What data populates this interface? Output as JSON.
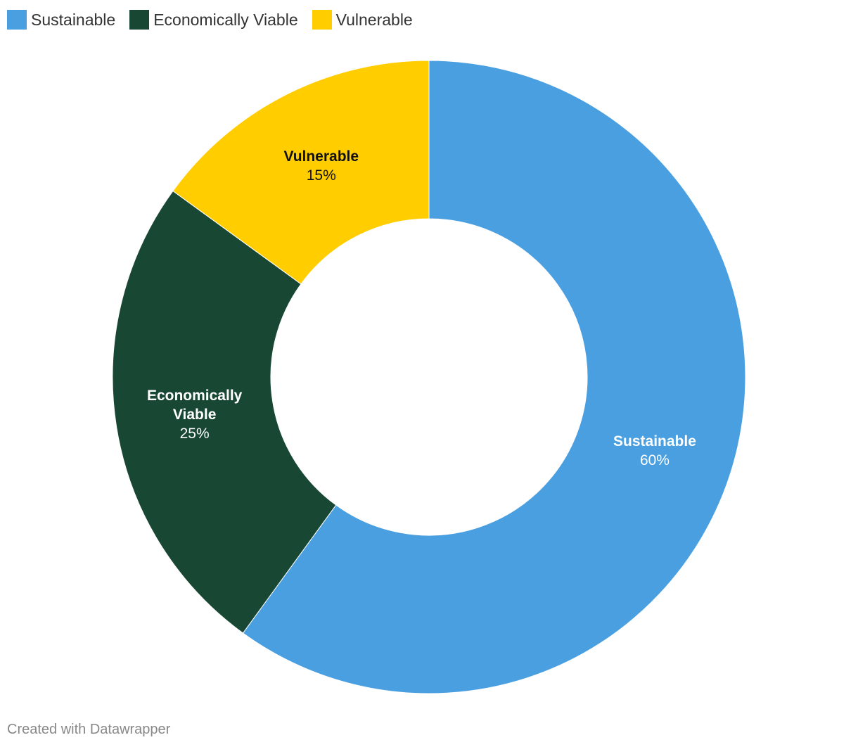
{
  "chart_data": {
    "type": "pie",
    "variant": "donut",
    "categories": [
      "Sustainable",
      "Economically Viable",
      "Vulnerable"
    ],
    "label_lines": [
      [
        "Sustainable"
      ],
      [
        "Economically",
        "Viable"
      ],
      [
        "Vulnerable"
      ]
    ],
    "values": [
      60,
      25,
      15
    ],
    "value_labels": [
      "60%",
      "25%",
      "15%"
    ],
    "unit": "%",
    "colors": [
      "#4a9fe0",
      "#184734",
      "#ffcd00"
    ],
    "label_colors": [
      "#ffffff",
      "#ffffff",
      "#111111"
    ],
    "legend_placement": "top-left"
  },
  "footer": {
    "credit": "Created with Datawrapper"
  }
}
